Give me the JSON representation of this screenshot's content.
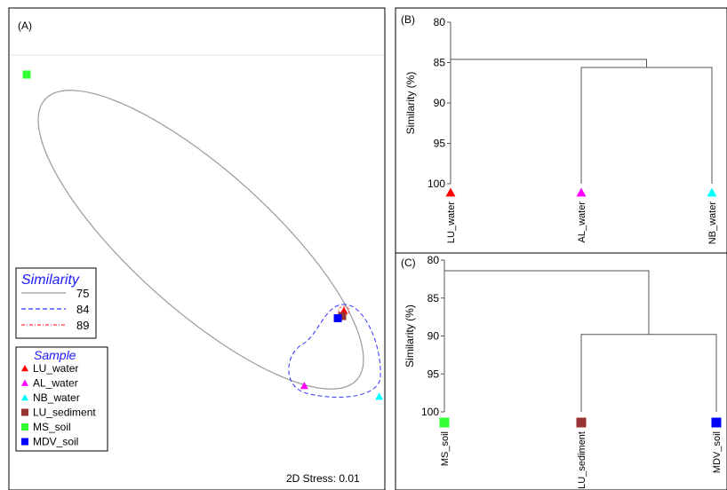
{
  "panel_a": {
    "label": "(A)",
    "stress_text": "2D Stress: 0.01",
    "similarity_legend": {
      "title": "Similarity",
      "levels": [
        {
          "value": "75",
          "color": "#999999",
          "style": "solid"
        },
        {
          "value": "84",
          "color": "#3333ff",
          "style": "dashed"
        },
        {
          "value": "89",
          "color": "#ff3333",
          "style": "dash-dot"
        }
      ]
    },
    "sample_legend": {
      "title": "Sample",
      "items": [
        {
          "name": "LU_water",
          "color": "#ff0000",
          "shape": "triangle"
        },
        {
          "name": "AL_water",
          "color": "#ff00ff",
          "shape": "triangle"
        },
        {
          "name": "NB_water",
          "color": "#00ffff",
          "shape": "triangle"
        },
        {
          "name": "LU_sediment",
          "color": "#993333",
          "shape": "square"
        },
        {
          "name": "MS_soil",
          "color": "#33ff33",
          "shape": "square"
        },
        {
          "name": "MDV_soil",
          "color": "#0000ff",
          "shape": "square"
        }
      ]
    }
  },
  "chart_data": [
    {
      "type": "scatter",
      "panel": "(A)",
      "points": [
        {
          "sample": "MS_soil",
          "x": -2.6,
          "y": 1.8
        },
        {
          "sample": "LU_water",
          "x": 1.0,
          "y": -0.4
        },
        {
          "sample": "LU_sediment",
          "x": 0.98,
          "y": -0.45
        },
        {
          "sample": "MDV_soil",
          "x": 0.93,
          "y": -0.47
        },
        {
          "sample": "AL_water",
          "x": 0.55,
          "y": -1.1
        },
        {
          "sample": "NB_water",
          "x": 1.4,
          "y": -1.2
        }
      ],
      "annotation": "2D Stress: 0.01"
    },
    {
      "type": "dendrogram",
      "panel": "(B)",
      "ylabel": "Similarity (%)",
      "ylim": [
        80,
        100
      ],
      "yticks": [
        "80",
        "85",
        "90",
        "95",
        "100"
      ],
      "leaves": [
        {
          "name": "LU_water",
          "color": "#ff0000",
          "shape": "triangle"
        },
        {
          "name": "AL_water",
          "color": "#ff00ff",
          "shape": "triangle"
        },
        {
          "name": "NB_water",
          "color": "#00ffff",
          "shape": "triangle"
        }
      ],
      "merges": [
        {
          "left": "AL_water",
          "right": "NB_water",
          "height": 85.6
        },
        {
          "left": "LU_water",
          "right": "AL_water+NB_water",
          "height": 84.6
        }
      ]
    },
    {
      "type": "dendrogram",
      "panel": "(C)",
      "ylabel": "Similarity (%)",
      "ylim": [
        80,
        100
      ],
      "yticks": [
        "80",
        "85",
        "90",
        "95",
        "100"
      ],
      "leaves": [
        {
          "name": "MS_soil",
          "color": "#33ff33",
          "shape": "square"
        },
        {
          "name": "LU_sediment",
          "color": "#993333",
          "shape": "square"
        },
        {
          "name": "MDV_soil",
          "color": "#0000ff",
          "shape": "square"
        }
      ],
      "merges": [
        {
          "left": "LU_sediment",
          "right": "MDV_soil",
          "height": 89.8
        },
        {
          "left": "MS_soil",
          "right": "LU_sediment+MDV_soil",
          "height": 81.4
        }
      ]
    }
  ]
}
